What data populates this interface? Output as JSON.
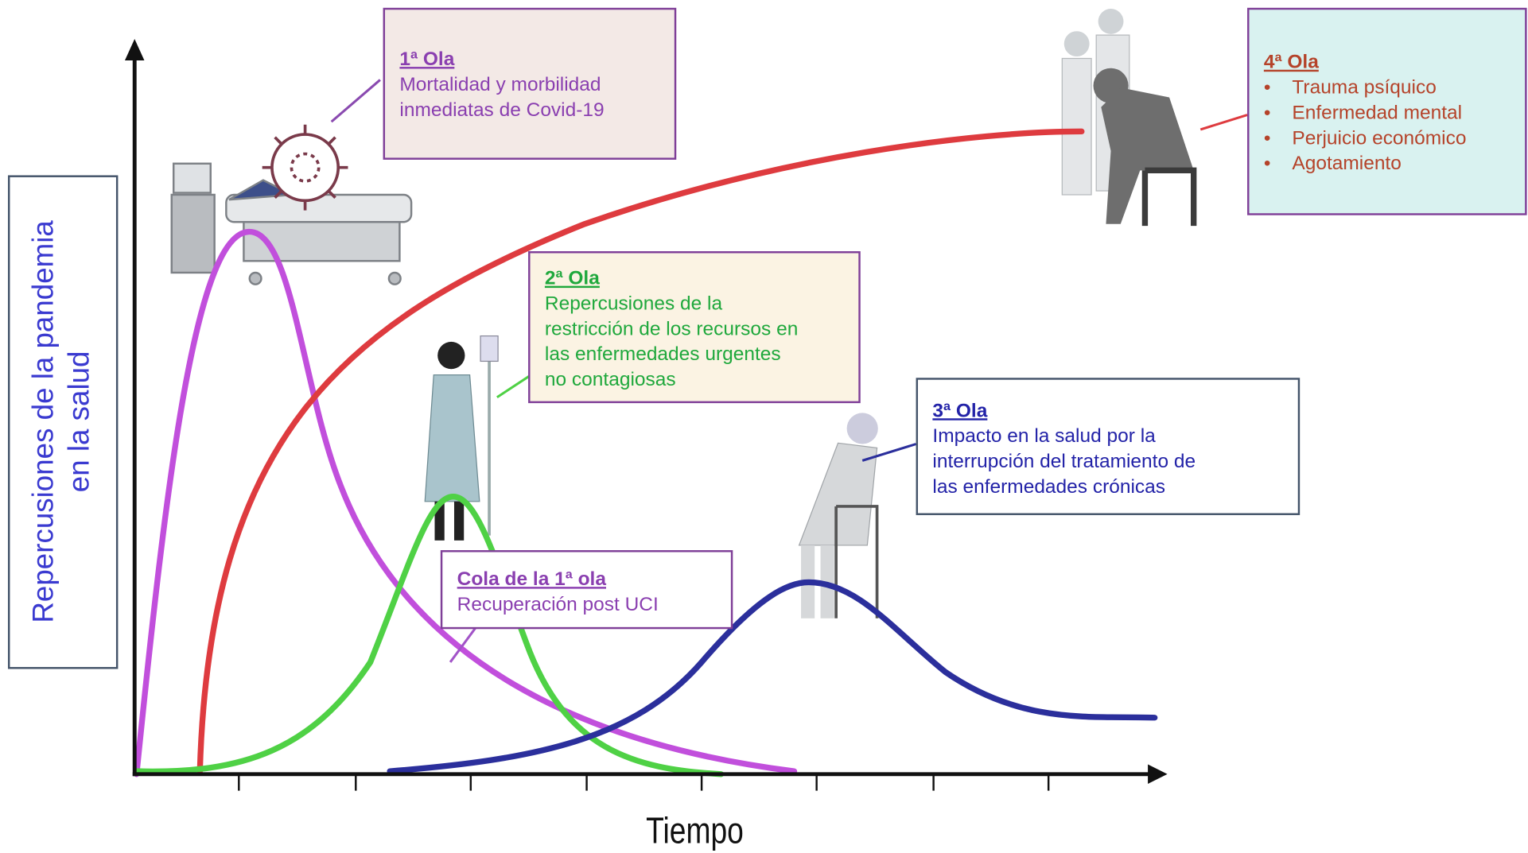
{
  "axes": {
    "y_label": [
      "Repercusiones de la pandemia",
      "en la salud"
    ],
    "x_label": "Tiempo"
  },
  "boxes": [
    {
      "title": "1ª Ola",
      "lines": [
        "Mortalidad y morbilidad",
        "inmediatas de Covid-19"
      ]
    },
    {
      "title": "2ª Ola",
      "lines": [
        "Repercusiones  de la",
        "restricción de los recursos en",
        "las enfermedades  urgentes",
        "no contagiosas"
      ]
    },
    {
      "title": "3ª Ola",
      "lines": [
        "Impacto en la salud por la",
        "interrupción del tratamiento de",
        "las enfermedades  crónicas"
      ]
    },
    {
      "title": "4ª Ola",
      "items": [
        "Trauma psíquico",
        "Enfermedad mental",
        "Perjuicio económico",
        "Agotamiento"
      ]
    },
    {
      "title": "Cola de la 1ª ola",
      "lines": [
        "Recuperación  post UCI"
      ]
    }
  ]
}
